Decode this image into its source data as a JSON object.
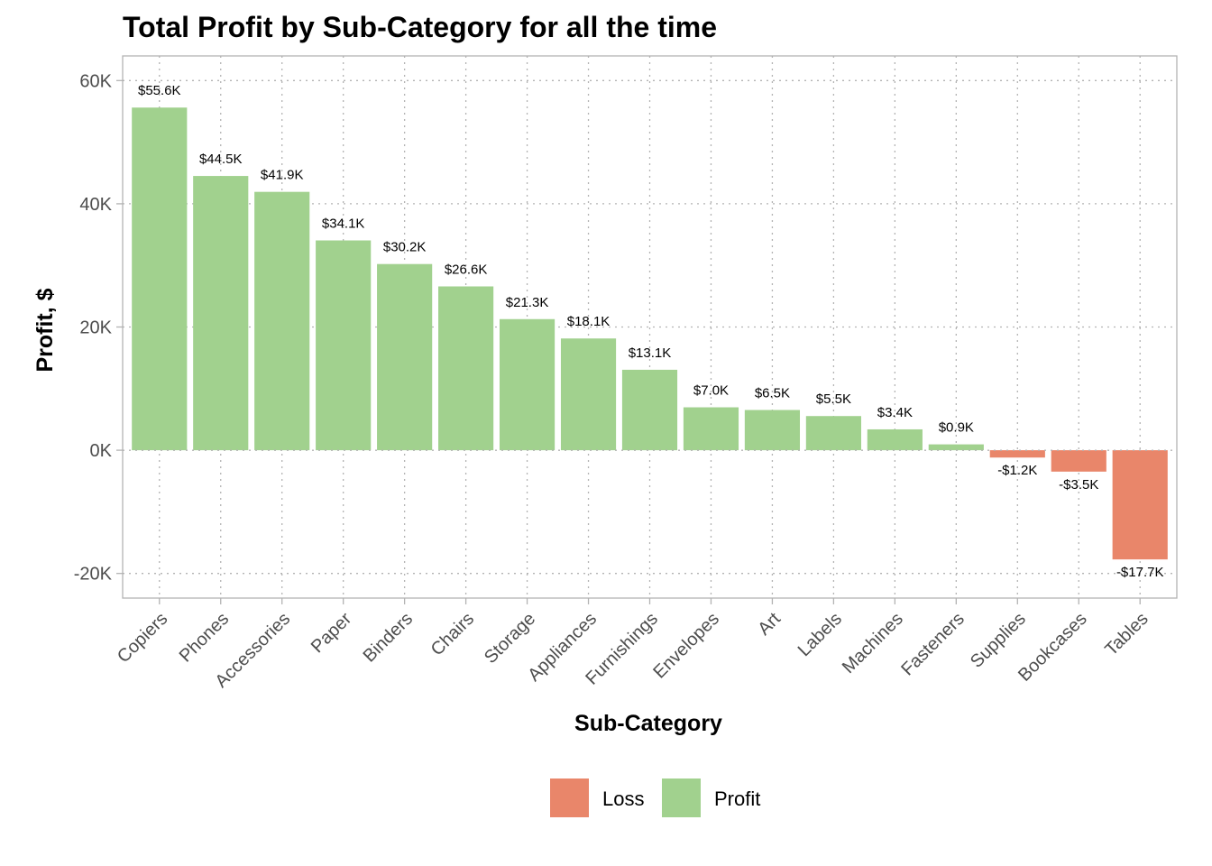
{
  "chart_data": {
    "type": "bar",
    "title": "Total Profit by Sub-Category for all the time",
    "xlabel": "Sub-Category",
    "ylabel": "Profit, $",
    "ylim": [
      -24000,
      64000
    ],
    "yticks": [
      -20000,
      0,
      20000,
      40000,
      60000
    ],
    "ytick_labels": [
      "-20K",
      "0K",
      "20K",
      "40K",
      "60K"
    ],
    "grid": true,
    "categories": [
      "Copiers",
      "Phones",
      "Accessories",
      "Paper",
      "Binders",
      "Chairs",
      "Storage",
      "Appliances",
      "Furnishings",
      "Envelopes",
      "Art",
      "Labels",
      "Machines",
      "Fasteners",
      "Supplies",
      "Bookcases",
      "Tables"
    ],
    "values": [
      55618,
      44516,
      41937,
      34054,
      30222,
      26590,
      21279,
      18138,
      13059,
      6964,
      6528,
      5546,
      3385,
      950,
      -1189,
      -3473,
      -17725
    ],
    "labels": [
      "$55.6K",
      "$44.5K",
      "$41.9K",
      "$34.1K",
      "$30.2K",
      "$26.6K",
      "$21.3K",
      "$18.1K",
      "$13.1K",
      "$7.0K",
      "$6.5K",
      "$5.5K",
      "$3.4K",
      "$0.9K",
      "-$1.2K",
      "-$3.5K",
      "-$17.7K"
    ],
    "fill_by": [
      "Profit",
      "Profit",
      "Profit",
      "Profit",
      "Profit",
      "Profit",
      "Profit",
      "Profit",
      "Profit",
      "Profit",
      "Profit",
      "Profit",
      "Profit",
      "Profit",
      "Loss",
      "Loss",
      "Loss"
    ],
    "legend": {
      "position": "bottom",
      "entries": [
        {
          "name": "Loss",
          "color": "#E9866A"
        },
        {
          "name": "Profit",
          "color": "#A1D18E"
        }
      ]
    },
    "colors": {
      "profit": "#A1D18E",
      "loss": "#E9866A",
      "grid": "#b3b3b3",
      "panel_border": "#b3b3b3"
    }
  }
}
